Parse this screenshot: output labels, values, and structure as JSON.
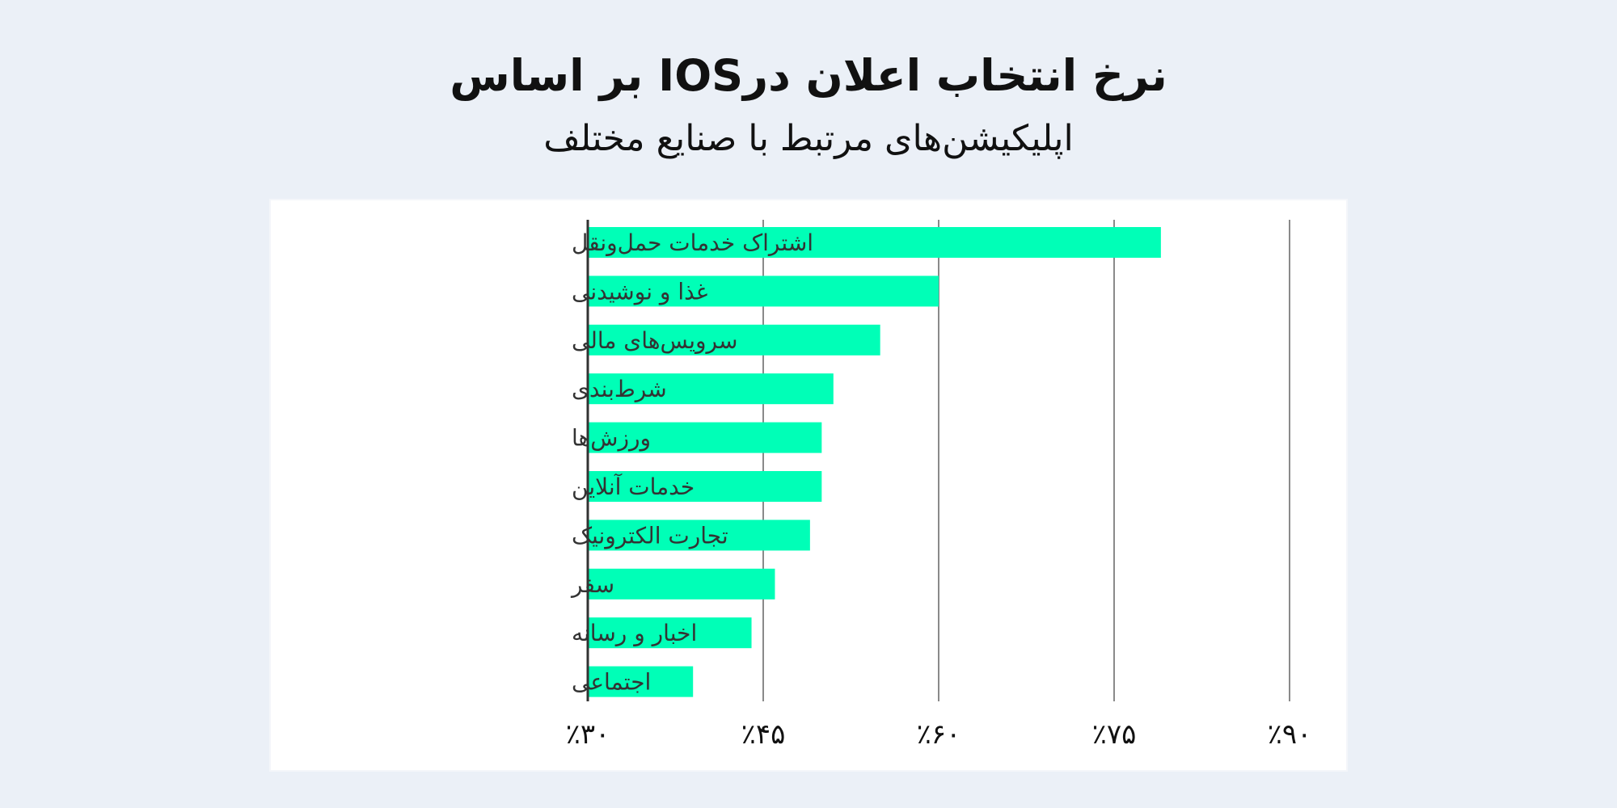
{
  "title": "نرخ انتخاب اعلان درIOS بر اساس",
  "subtitle": "اپلیکیشن‌های مرتبط با صنایع مختلف",
  "colors": {
    "bar": "#00ffb7",
    "background": "#ebf0f7",
    "grid": "#8a8a8a"
  },
  "chart_data": {
    "type": "bar",
    "orientation": "horizontal",
    "categories": [
      "اشتراک خدمات حمل‌ونقل",
      "غذا و نوشیدنی",
      "سرویس‌های مالی",
      "شرط‌بندی",
      "ورزش‌ها",
      "خدمات آنلاین",
      "تجارت الکترونیک",
      "سفر",
      "اخبار و رسانه",
      "اجتماعی"
    ],
    "values": [
      79,
      60,
      55,
      51,
      50,
      50,
      49,
      46,
      44,
      39
    ],
    "xlim": [
      30,
      90
    ],
    "ticks": [
      30,
      45,
      60,
      75,
      90
    ],
    "tick_labels": [
      "٪۳۰",
      "٪۴۵",
      "٪۶۰",
      "٪۷۵",
      "٪۹۰"
    ],
    "grid": true,
    "legend": "none"
  }
}
